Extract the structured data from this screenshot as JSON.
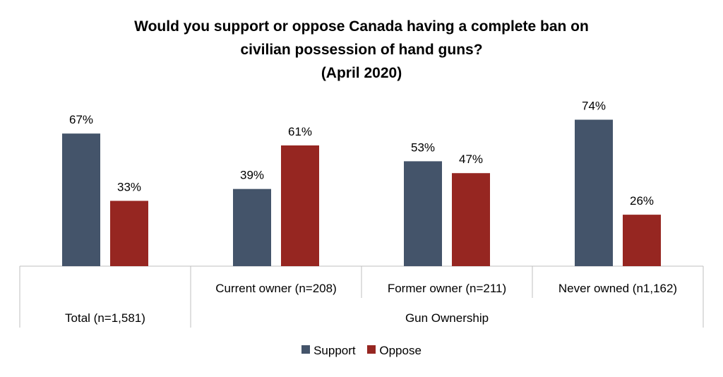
{
  "title_lines": [
    "Would you support or oppose Canada having a complete ban on",
    "civilian possession of hand guns?",
    "(April 2020)"
  ],
  "colors": {
    "support": "#44546A",
    "oppose": "#962621",
    "axis": "#BFBFBF"
  },
  "chart_data": {
    "type": "bar",
    "title": "Would you support or oppose Canada having a complete ban on civilian possession of hand guns? (April 2020)",
    "categories": [
      "Total (n=1,581)",
      "Current owner (n=208)",
      "Former owner (n=211)",
      "Never owned (n1,162)"
    ],
    "category_groups": [
      {
        "label": "",
        "categories": [
          "Total (n=1,581)"
        ]
      },
      {
        "label": "Gun Ownership",
        "categories": [
          "Current owner (n=208)",
          "Former owner (n=211)",
          "Never owned (n1,162)"
        ]
      }
    ],
    "series": [
      {
        "name": "Support",
        "values": [
          67,
          39,
          53,
          74
        ],
        "labels": [
          "67%",
          "39%",
          "53%",
          "74%"
        ]
      },
      {
        "name": "Oppose",
        "values": [
          33,
          61,
          47,
          26
        ],
        "labels": [
          "33%",
          "61%",
          "47%",
          "26%"
        ]
      }
    ],
    "ylim": [
      0,
      100
    ],
    "unit": "%",
    "legend_position": "bottom",
    "grid": false
  },
  "legend": {
    "support_label": "Support",
    "oppose_label": "Oppose"
  }
}
